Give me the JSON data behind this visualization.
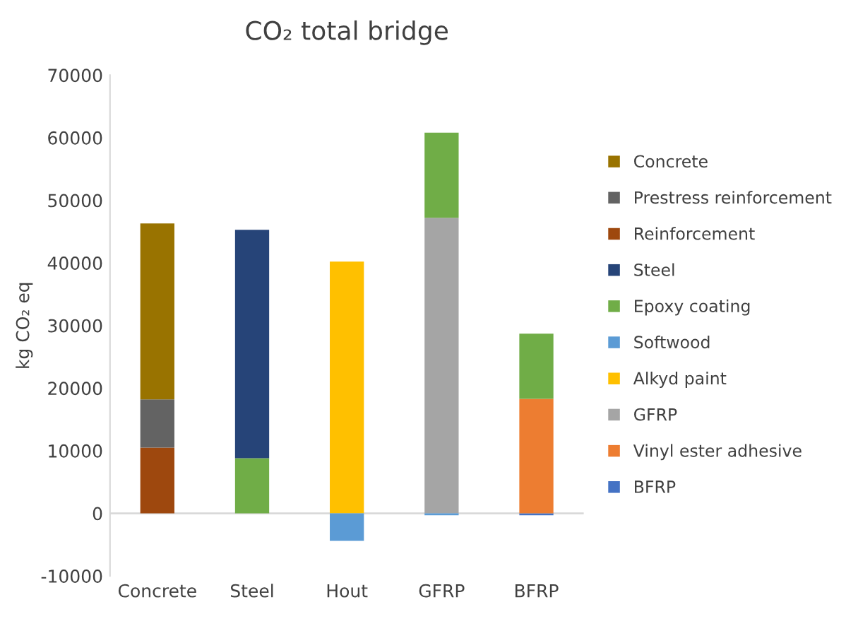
{
  "chart_data": {
    "type": "bar",
    "title": "CO₂ total bridge",
    "ylabel": "kg CO₂ eq",
    "stacked": true,
    "legend": "right",
    "grid": false,
    "categories": [
      "Concrete",
      "Steel",
      "Hout",
      "GFRP",
      "BFRP"
    ],
    "ref_lines": [
      {
        "axis": "y",
        "value": 0,
        "color": "#d9d9d9"
      }
    ],
    "ylim": [
      -10000,
      70000
    ],
    "yticks": [
      -10000,
      0,
      10000,
      20000,
      30000,
      40000,
      50000,
      60000,
      70000
    ],
    "series": [
      {
        "name": "BFRP",
        "color": "#4472c4",
        "values": [
          null,
          null,
          null,
          null,
          -300
        ]
      },
      {
        "name": "Vinyl ester adhesive",
        "color": "#ed7d31",
        "values": [
          null,
          null,
          null,
          null,
          18300
        ]
      },
      {
        "name": "GFRP",
        "color": "#a5a5a5",
        "values": [
          null,
          null,
          null,
          47200,
          null
        ]
      },
      {
        "name": "Alkyd paint",
        "color": "#ffc000",
        "values": [
          null,
          null,
          40200,
          null,
          null
        ]
      },
      {
        "name": "Softwood",
        "color": "#5b9bd5",
        "values": [
          null,
          null,
          -4400,
          -300,
          null
        ]
      },
      {
        "name": "Epoxy coating",
        "color": "#70ad47",
        "values": [
          null,
          8800,
          null,
          13600,
          10400
        ]
      },
      {
        "name": "Steel",
        "color": "#264478",
        "values": [
          null,
          36500,
          null,
          null,
          null
        ]
      },
      {
        "name": "Reinforcement",
        "color": "#9e480e",
        "values": [
          10500,
          null,
          null,
          null,
          null
        ]
      },
      {
        "name": "Prestress reinforcement",
        "color": "#636363",
        "values": [
          7700,
          null,
          null,
          null,
          null
        ]
      },
      {
        "name": "Concrete",
        "color": "#997300",
        "values": [
          28100,
          null,
          null,
          null,
          null
        ]
      }
    ]
  }
}
